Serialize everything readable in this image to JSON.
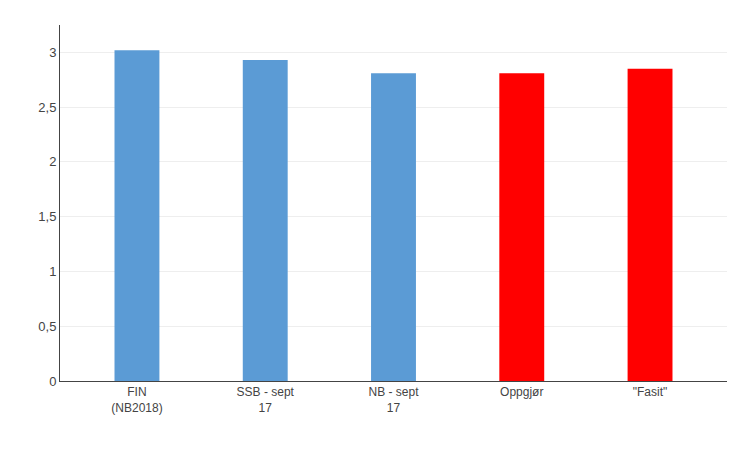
{
  "chart_data": {
    "type": "bar",
    "categories": [
      "FIN\n(NB2018)",
      "SSB - sept\n17",
      "NB - sept\n17",
      "Oppgjør",
      "\"Fasit\""
    ],
    "values": [
      3.02,
      2.93,
      2.81,
      2.81,
      2.85
    ],
    "colors": [
      "#5B9BD5",
      "#5B9BD5",
      "#5B9BD5",
      "#FF0000",
      "#FF0000"
    ],
    "ylim": [
      0,
      3.25
    ],
    "yticks": [
      0,
      {
        "value": 0.5,
        "label": "0,5"
      },
      1,
      {
        "value": 1.5,
        "label": "1,5"
      },
      2,
      {
        "value": 2.5,
        "label": "2,5"
      },
      3
    ],
    "grid": true
  }
}
